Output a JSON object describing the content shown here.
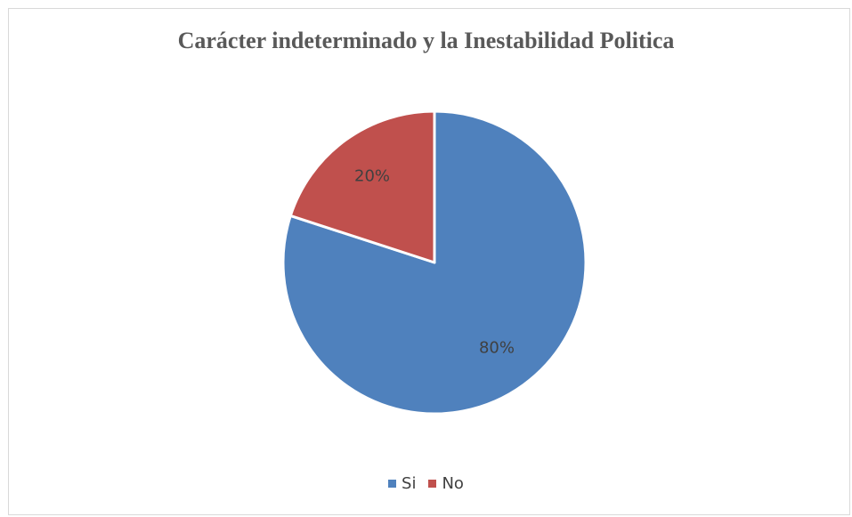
{
  "chart_data": {
    "type": "pie",
    "title": "Carácter indeterminado y la Inestabilidad Politica",
    "categories": [
      "Si",
      "No"
    ],
    "values": [
      80,
      20
    ],
    "data_labels": [
      "80%",
      "20%"
    ],
    "colors": [
      "#4F81BD",
      "#C0504D"
    ],
    "legend_position": "bottom"
  }
}
